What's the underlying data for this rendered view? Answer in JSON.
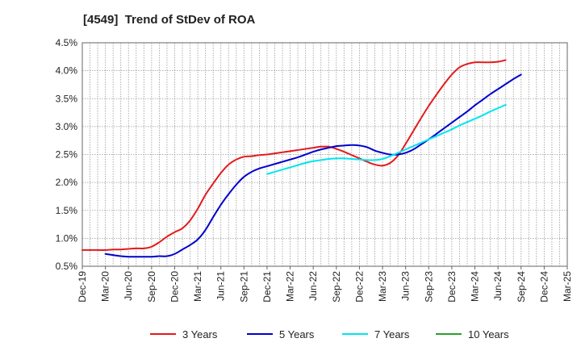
{
  "chart_data": {
    "type": "line",
    "title": "[4549]  Trend of StDev of ROA",
    "xlabel": "",
    "ylabel": "",
    "ylim": [
      0.5,
      4.5
    ],
    "yticks": [
      0.5,
      1.0,
      1.5,
      2.0,
      2.5,
      3.0,
      3.5,
      4.0,
      4.5
    ],
    "ytick_labels": [
      "0.5%",
      "1.0%",
      "1.5%",
      "2.0%",
      "2.5%",
      "3.0%",
      "3.5%",
      "4.0%",
      "4.5%"
    ],
    "x_ticks": [
      "Dec-19",
      "Mar-20",
      "Jun-20",
      "Sep-20",
      "Dec-20",
      "Mar-21",
      "Jun-21",
      "Sep-21",
      "Dec-21",
      "Mar-22",
      "Jun-22",
      "Sep-22",
      "Dec-22",
      "Mar-23",
      "Jun-23",
      "Sep-23",
      "Dec-23",
      "Mar-24",
      "Jun-24",
      "Sep-24",
      "Dec-24",
      "Mar-25"
    ],
    "grid": true,
    "legend_position": "bottom",
    "series": [
      {
        "name": "3 Years",
        "color": "#e31a1c",
        "start_index": 0,
        "values": [
          0.79,
          0.79,
          0.79,
          0.79,
          0.8,
          0.8,
          0.81,
          0.82,
          0.82,
          0.85,
          0.93,
          1.03,
          1.11,
          1.18,
          1.32,
          1.53,
          1.78,
          1.98,
          2.17,
          2.32,
          2.41,
          2.46,
          2.47,
          2.49,
          2.5,
          2.52,
          2.54,
          2.56,
          2.58,
          2.6,
          2.62,
          2.64,
          2.64,
          2.6,
          2.55,
          2.49,
          2.43,
          2.37,
          2.32,
          2.3,
          2.35,
          2.48,
          2.69,
          2.92,
          3.15,
          3.37,
          3.57,
          3.76,
          3.93,
          4.06,
          4.12,
          4.15,
          4.15,
          4.15,
          4.16,
          4.19
        ]
      },
      {
        "name": "5 Years",
        "color": "#0000cc",
        "start_index": 3,
        "values": [
          0.72,
          0.7,
          0.68,
          0.67,
          0.67,
          0.67,
          0.67,
          0.68,
          0.68,
          0.72,
          0.8,
          0.88,
          0.98,
          1.15,
          1.38,
          1.6,
          1.79,
          1.96,
          2.1,
          2.19,
          2.25,
          2.29,
          2.33,
          2.37,
          2.41,
          2.45,
          2.5,
          2.55,
          2.59,
          2.62,
          2.65,
          2.66,
          2.67,
          2.66,
          2.63,
          2.57,
          2.53,
          2.5,
          2.5,
          2.53,
          2.59,
          2.68,
          2.77,
          2.87,
          2.97,
          3.07,
          3.17,
          3.27,
          3.38,
          3.48,
          3.58,
          3.67,
          3.76,
          3.85,
          3.93
        ]
      },
      {
        "name": "7 Years",
        "color": "#00e5ee",
        "start_index": 24,
        "values": [
          2.15,
          2.19,
          2.23,
          2.27,
          2.31,
          2.35,
          2.38,
          2.4,
          2.42,
          2.43,
          2.43,
          2.42,
          2.41,
          2.4,
          2.4,
          2.42,
          2.47,
          2.53,
          2.59,
          2.65,
          2.71,
          2.77,
          2.83,
          2.89,
          2.95,
          3.02,
          3.08,
          3.14,
          3.2,
          3.27,
          3.33,
          3.39
        ]
      },
      {
        "name": "10 Years",
        "color": "#2ca02c",
        "start_index": 0,
        "values": []
      }
    ]
  }
}
